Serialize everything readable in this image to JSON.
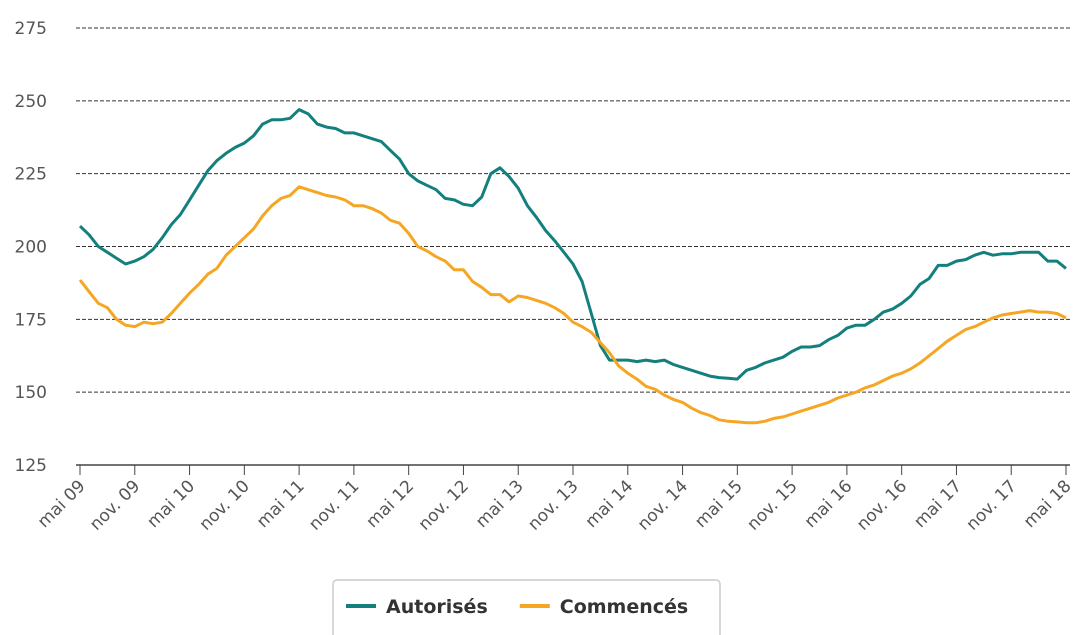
{
  "chart_data": {
    "type": "line",
    "categories": [
      "mai 09",
      null,
      null,
      null,
      null,
      null,
      "nov. 09",
      null,
      null,
      null,
      null,
      null,
      "mai 10",
      null,
      null,
      null,
      null,
      null,
      "nov. 10",
      null,
      null,
      null,
      null,
      null,
      "mai 11",
      null,
      null,
      null,
      null,
      null,
      "nov. 11",
      null,
      null,
      null,
      null,
      null,
      "mai 12",
      null,
      null,
      null,
      null,
      null,
      "nov. 12",
      null,
      null,
      null,
      null,
      null,
      "mai 13",
      null,
      null,
      null,
      null,
      null,
      "nov. 13",
      null,
      null,
      null,
      null,
      null,
      "mai 14",
      null,
      null,
      null,
      null,
      null,
      "nov. 14",
      null,
      null,
      null,
      null,
      null,
      "mai 15",
      null,
      null,
      null,
      null,
      null,
      "nov. 15",
      null,
      null,
      null,
      null,
      null,
      "mai 16",
      null,
      null,
      null,
      null,
      null,
      "nov. 16",
      null,
      null,
      null,
      null,
      null,
      "mai 17",
      null,
      null,
      null,
      null,
      null,
      "nov. 17",
      null,
      null,
      null,
      null,
      null,
      "mai 18"
    ],
    "series": [
      {
        "name": "Autorisés",
        "color": "#13807e",
        "values": [
          207,
          204,
          200,
          198,
          196,
          194,
          195,
          196.5,
          199,
          203,
          207.5,
          211,
          216,
          221,
          226,
          229.5,
          232,
          234,
          235.5,
          238,
          242,
          243.5,
          243.5,
          244,
          247,
          245.5,
          242,
          241,
          240.5,
          239,
          239,
          238,
          237,
          236,
          233,
          230,
          225,
          222.5,
          221,
          219.5,
          216.5,
          216,
          214.5,
          214,
          217,
          225,
          227,
          224,
          220,
          214,
          210,
          205.5,
          202,
          198,
          194,
          188,
          177,
          166,
          161,
          161,
          161,
          160.5,
          161,
          160.5,
          161,
          159.5,
          158.5,
          157.5,
          156.5,
          155.5,
          155,
          154.8,
          154.5,
          157.5,
          158.5,
          160,
          161,
          162,
          164,
          165.5,
          165.5,
          166,
          168,
          169.5,
          172,
          173,
          173,
          175,
          177.5,
          178.5,
          180.5,
          183,
          187,
          189,
          193.5,
          193.5,
          195,
          195.5,
          197,
          198,
          197,
          197.5,
          197.5,
          198,
          198,
          198,
          195,
          195,
          192.5
        ]
      },
      {
        "name": "Commencés",
        "color": "#f5a623",
        "values": [
          188.5,
          184.5,
          180.5,
          179,
          175,
          173,
          172.5,
          174,
          173.5,
          174,
          177,
          180.5,
          184,
          187,
          190.5,
          192.5,
          197,
          200,
          203,
          206,
          210.5,
          214,
          216.5,
          217.5,
          220.5,
          219.5,
          218.5,
          217.5,
          217,
          216,
          214,
          214,
          213,
          211.5,
          209,
          208,
          204.5,
          200,
          198.5,
          196.5,
          195,
          192,
          192,
          188,
          186,
          183.5,
          183.5,
          181,
          183,
          182.5,
          181.5,
          180.5,
          179,
          177,
          174,
          172.5,
          170.5,
          167,
          163.5,
          159,
          156.5,
          154.5,
          152,
          151,
          149,
          147.5,
          146.5,
          144.5,
          143,
          142,
          140.5,
          140,
          139.8,
          139.5,
          139.5,
          140,
          141,
          141.5,
          142.5,
          143.5,
          144.5,
          145.5,
          146.5,
          148,
          149,
          150,
          151.5,
          152.5,
          154,
          155.5,
          156.5,
          158,
          160,
          162.5,
          165,
          167.5,
          169.5,
          171.5,
          172.5,
          174,
          175.5,
          176.5,
          177,
          177.5,
          178,
          177.5,
          177.5,
          177,
          175.5
        ]
      }
    ],
    "ylim": [
      125,
      275
    ],
    "yticks": [
      125,
      150,
      175,
      200,
      225,
      250,
      275
    ],
    "grid": true,
    "legend": "bottom"
  }
}
